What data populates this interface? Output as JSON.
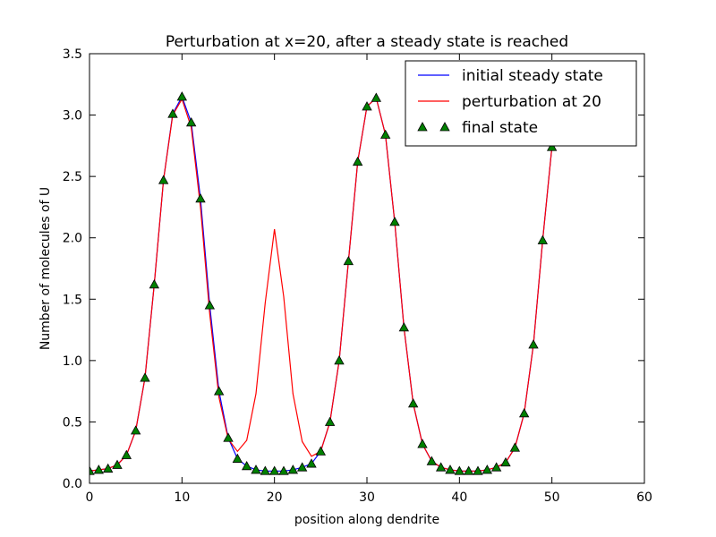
{
  "chart_data": {
    "type": "line",
    "title": "Perturbation at x=20, after a steady state is reached",
    "xlabel": "position along dendrite",
    "ylabel": "Number of molecules of U",
    "xlim": [
      0,
      60
    ],
    "ylim": [
      0,
      3.5
    ],
    "xticks": [
      "0",
      "10",
      "20",
      "30",
      "40",
      "50",
      "60"
    ],
    "yticks": [
      "0.0",
      "0.5",
      "1.0",
      "1.5",
      "2.0",
      "2.5",
      "3.0",
      "3.5"
    ],
    "grid": false,
    "legend_position": "top-right",
    "series": [
      {
        "name": "initial steady state",
        "style": "line",
        "color": "#0000ff",
        "x": [
          0,
          1,
          2,
          3,
          4,
          5,
          6,
          7,
          8,
          9,
          10,
          11,
          12,
          13,
          14,
          15,
          16,
          17,
          18,
          19,
          20,
          21,
          22,
          23,
          24,
          25,
          26,
          27,
          28,
          29,
          30,
          31,
          32,
          33,
          34,
          35,
          36,
          37,
          38,
          39,
          40,
          41,
          42,
          43,
          44,
          45,
          46,
          47,
          48,
          49,
          50
        ],
        "y": [
          0.1,
          0.11,
          0.12,
          0.15,
          0.23,
          0.43,
          0.86,
          1.62,
          2.47,
          3.01,
          3.15,
          2.94,
          2.32,
          1.45,
          0.75,
          0.37,
          0.2,
          0.14,
          0.11,
          0.1,
          0.1,
          0.1,
          0.11,
          0.13,
          0.16,
          0.26,
          0.5,
          1.0,
          1.81,
          2.62,
          3.07,
          3.14,
          2.84,
          2.13,
          1.27,
          0.65,
          0.32,
          0.18,
          0.13,
          0.11,
          0.1,
          0.1,
          0.1,
          0.11,
          0.13,
          0.17,
          0.29,
          0.57,
          1.13,
          1.98,
          2.74
        ]
      },
      {
        "name": "perturbation at 20",
        "style": "line",
        "color": "#ff0000",
        "x": [
          0,
          1,
          2,
          3,
          4,
          5,
          6,
          7,
          8,
          9,
          10,
          11,
          12,
          13,
          14,
          15,
          16,
          17,
          18,
          19,
          20,
          21,
          22,
          23,
          24,
          25,
          26,
          27,
          28,
          29,
          30,
          31,
          32,
          33,
          34,
          35,
          36,
          37,
          38,
          39,
          40,
          41,
          42,
          43,
          44,
          45,
          46,
          47,
          48,
          49,
          50
        ],
        "y": [
          0.1,
          0.11,
          0.12,
          0.15,
          0.23,
          0.43,
          0.86,
          1.62,
          2.47,
          3.0,
          3.13,
          2.9,
          2.25,
          1.38,
          0.7,
          0.36,
          0.26,
          0.35,
          0.73,
          1.47,
          2.07,
          1.52,
          0.73,
          0.34,
          0.22,
          0.26,
          0.5,
          1.0,
          1.81,
          2.62,
          3.07,
          3.14,
          2.84,
          2.13,
          1.27,
          0.65,
          0.32,
          0.18,
          0.13,
          0.11,
          0.1,
          0.1,
          0.1,
          0.11,
          0.13,
          0.17,
          0.29,
          0.57,
          1.13,
          1.98,
          2.74
        ]
      },
      {
        "name": "final state",
        "style": "markers",
        "marker": "triangle-up",
        "color": "#008000",
        "x": [
          0,
          1,
          2,
          3,
          4,
          5,
          6,
          7,
          8,
          9,
          10,
          11,
          12,
          13,
          14,
          15,
          16,
          17,
          18,
          19,
          20,
          21,
          22,
          23,
          24,
          25,
          26,
          27,
          28,
          29,
          30,
          31,
          32,
          33,
          34,
          35,
          36,
          37,
          38,
          39,
          40,
          41,
          42,
          43,
          44,
          45,
          46,
          47,
          48,
          49,
          50
        ],
        "y": [
          0.1,
          0.11,
          0.12,
          0.15,
          0.23,
          0.43,
          0.86,
          1.62,
          2.47,
          3.01,
          3.15,
          2.94,
          2.32,
          1.45,
          0.75,
          0.37,
          0.2,
          0.14,
          0.11,
          0.1,
          0.1,
          0.1,
          0.11,
          0.13,
          0.16,
          0.26,
          0.5,
          1.0,
          1.81,
          2.62,
          3.07,
          3.14,
          2.84,
          2.13,
          1.27,
          0.65,
          0.32,
          0.18,
          0.13,
          0.11,
          0.1,
          0.1,
          0.1,
          0.11,
          0.13,
          0.17,
          0.29,
          0.57,
          1.13,
          1.98,
          2.74
        ]
      }
    ]
  }
}
